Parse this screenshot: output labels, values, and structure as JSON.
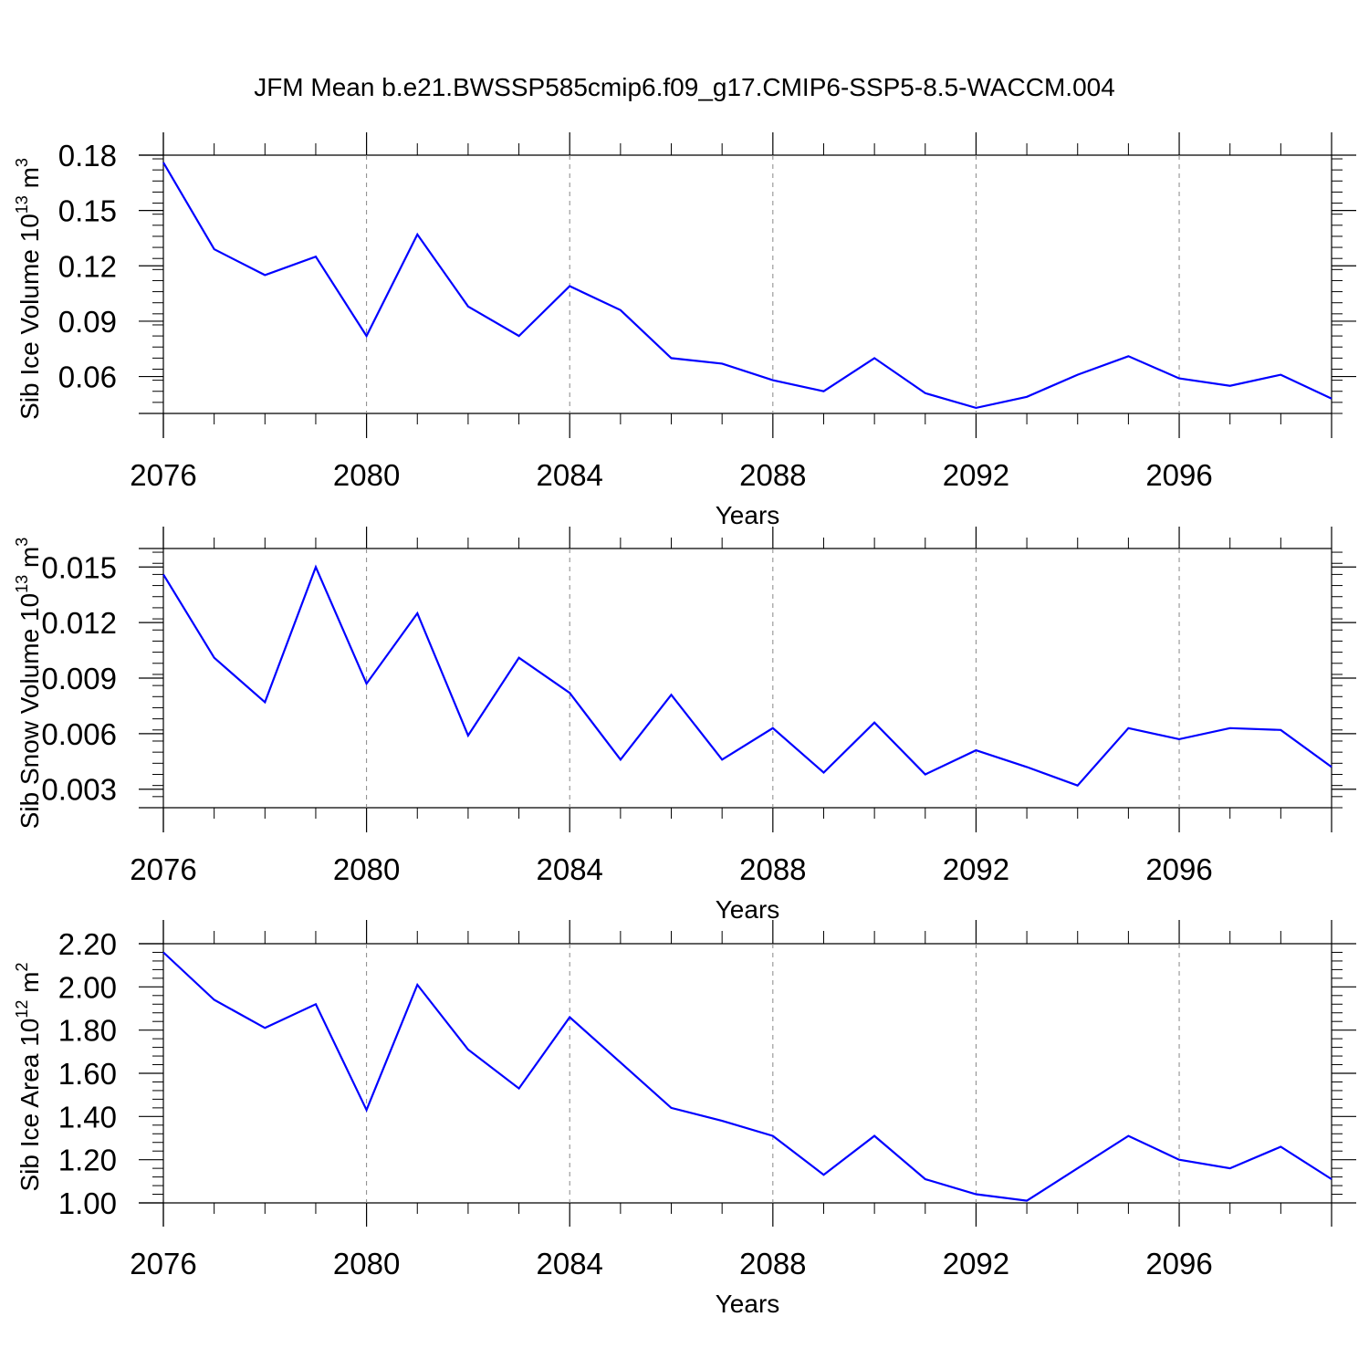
{
  "title": "JFM Mean b.e21.BWSSP585cmip6.f09_g17.CMIP6-SSP5-8.5-WACCM.004",
  "line_color": "#0000ff",
  "chart_data": [
    {
      "type": "line",
      "ylabel": "Sib Ice Volume 10",
      "ylabel_sup": "13",
      "ylabel_unit": " m",
      "ylabel_unit_sup": "3",
      "xlabel": "Years",
      "xlim": [
        2076,
        2099
      ],
      "ylim": [
        0.04,
        0.18
      ],
      "yticks": [
        "0.18",
        "0.15",
        "0.12",
        "0.09",
        "0.06"
      ],
      "ytick_values": [
        0.18,
        0.15,
        0.12,
        0.09,
        0.06
      ],
      "xticks": [
        "2076",
        "2080",
        "2084",
        "2088",
        "2092",
        "2096"
      ],
      "x": [
        2076,
        2077,
        2078,
        2079,
        2080,
        2081,
        2082,
        2083,
        2084,
        2085,
        2086,
        2087,
        2088,
        2089,
        2090,
        2091,
        2092,
        2093,
        2094,
        2095,
        2096,
        2097,
        2098,
        2099
      ],
      "values": [
        0.176,
        0.129,
        0.115,
        0.125,
        0.082,
        0.137,
        0.098,
        0.082,
        0.109,
        0.096,
        0.07,
        0.067,
        0.058,
        0.052,
        0.07,
        0.051,
        0.043,
        0.049,
        0.061,
        0.071,
        0.059,
        0.055,
        0.061,
        0.048
      ],
      "grid": "vertical dashed at labeled years"
    },
    {
      "type": "line",
      "ylabel": "Sib Snow Volume 10",
      "ylabel_sup": "13",
      "ylabel_unit": " m",
      "ylabel_unit_sup": "3",
      "xlabel": "Years",
      "xlim": [
        2076,
        2099
      ],
      "ylim": [
        0.002,
        0.016
      ],
      "yticks": [
        "0.015",
        "0.012",
        "0.009",
        "0.006",
        "0.003"
      ],
      "ytick_values": [
        0.015,
        0.012,
        0.009,
        0.006,
        0.003
      ],
      "xticks": [
        "2076",
        "2080",
        "2084",
        "2088",
        "2092",
        "2096"
      ],
      "x": [
        2076,
        2077,
        2078,
        2079,
        2080,
        2081,
        2082,
        2083,
        2084,
        2085,
        2086,
        2087,
        2088,
        2089,
        2090,
        2091,
        2092,
        2093,
        2094,
        2095,
        2096,
        2097,
        2098,
        2099
      ],
      "values": [
        0.0146,
        0.0101,
        0.0077,
        0.015,
        0.0087,
        0.0125,
        0.0059,
        0.0101,
        0.0082,
        0.0046,
        0.0081,
        0.0046,
        0.0063,
        0.0039,
        0.0066,
        0.0038,
        0.0051,
        0.0042,
        0.0032,
        0.0063,
        0.0057,
        0.0063,
        0.0062,
        0.0042
      ],
      "grid": "vertical dashed at labeled years"
    },
    {
      "type": "line",
      "ylabel": "Sib Ice Area 10",
      "ylabel_sup": "12",
      "ylabel_unit": " m",
      "ylabel_unit_sup": "2",
      "xlabel": "Years",
      "xlim": [
        2076,
        2099
      ],
      "ylim": [
        1.0,
        2.2
      ],
      "yticks": [
        "2.20",
        "2.00",
        "1.80",
        "1.60",
        "1.40",
        "1.20",
        "1.00"
      ],
      "ytick_values": [
        2.2,
        2.0,
        1.8,
        1.6,
        1.4,
        1.2,
        1.0
      ],
      "xticks": [
        "2076",
        "2080",
        "2084",
        "2088",
        "2092",
        "2096"
      ],
      "x": [
        2076,
        2077,
        2078,
        2079,
        2080,
        2081,
        2082,
        2083,
        2084,
        2085,
        2086,
        2087,
        2088,
        2089,
        2090,
        2091,
        2092,
        2093,
        2094,
        2095,
        2096,
        2097,
        2098,
        2099
      ],
      "values": [
        2.16,
        1.94,
        1.81,
        1.92,
        1.43,
        2.01,
        1.71,
        1.53,
        1.86,
        1.65,
        1.44,
        1.38,
        1.31,
        1.13,
        1.31,
        1.11,
        1.04,
        1.01,
        1.16,
        1.31,
        1.2,
        1.16,
        1.26,
        1.11
      ],
      "grid": "vertical dashed at labeled years"
    }
  ]
}
